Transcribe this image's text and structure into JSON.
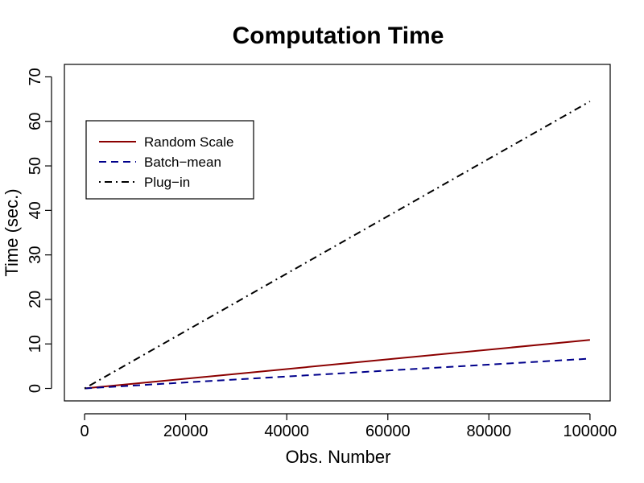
{
  "chart_data": {
    "type": "line",
    "title": "Computation Time",
    "xlabel": "Obs. Number",
    "ylabel": "Time (sec.)",
    "xlim": [
      -4000,
      104000
    ],
    "ylim": [
      -2.8,
      72.8
    ],
    "xticks": [
      0,
      20000,
      40000,
      60000,
      80000,
      100000
    ],
    "yticks": [
      0,
      10,
      20,
      30,
      40,
      50,
      60,
      70
    ],
    "legend": {
      "position": "top-left"
    },
    "grid": false,
    "series": [
      {
        "name": "Random Scale",
        "color": "#8b0000",
        "style": "solid",
        "x": [
          0,
          100000
        ],
        "y": [
          0,
          10.9
        ]
      },
      {
        "name": "Batch−mean",
        "color": "#00008b",
        "style": "dashed",
        "x": [
          0,
          100000
        ],
        "y": [
          0,
          6.7
        ]
      },
      {
        "name": "Plug−in",
        "color": "#000000",
        "style": "dotdash",
        "x": [
          0,
          100000
        ],
        "y": [
          0,
          64.5
        ]
      }
    ]
  }
}
